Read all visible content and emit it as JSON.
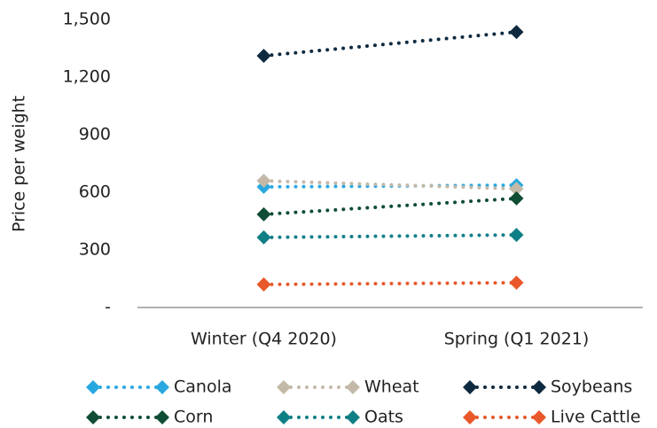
{
  "chart_data": {
    "type": "line",
    "y_label": "Price per weight",
    "categories": [
      "Winter (Q4 2020)",
      "Spring (Q1 2021)"
    ],
    "series": [
      {
        "name": "Canola",
        "color": "#29a8e0",
        "values": [
          628,
          637
        ]
      },
      {
        "name": "Wheat",
        "color": "#c4b9a8",
        "values": [
          660,
          618
        ]
      },
      {
        "name": "Soybeans",
        "color": "#0d2a40",
        "values": [
          1311,
          1435
        ]
      },
      {
        "name": "Corn",
        "color": "#0f4d34",
        "values": [
          485,
          568
        ]
      },
      {
        "name": "Oats",
        "color": "#0f7f86",
        "values": [
          365,
          378
        ]
      },
      {
        "name": "Live Cattle",
        "color": "#e9582a",
        "values": [
          120,
          129
        ]
      }
    ],
    "ylim": [
      0,
      1500
    ],
    "yticks": [
      {
        "value": 0,
        "label": "-"
      },
      300,
      600,
      900,
      {
        "value": 1200,
        "label": "1,200"
      },
      {
        "value": 1500,
        "label": "1,500"
      }
    ],
    "legend": "bottom"
  }
}
